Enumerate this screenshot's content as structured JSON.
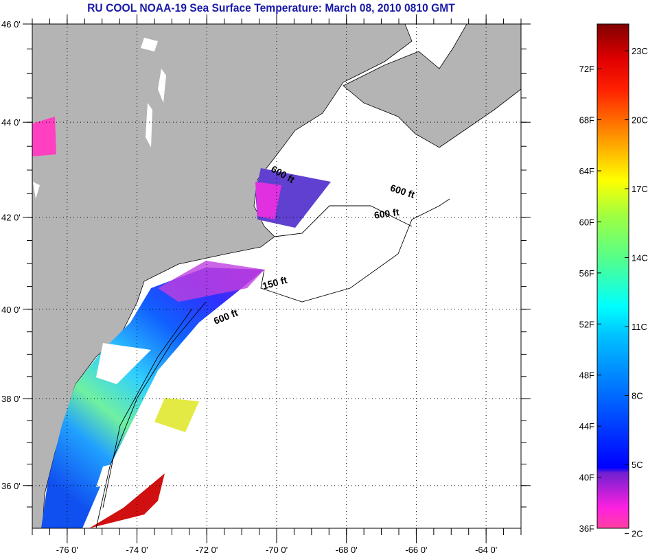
{
  "title": "RU COOL  NOAA-19  Sea Surface Temperature:  March 08, 2010 0810 GMT",
  "map": {
    "lon_range": [
      -77,
      -63
    ],
    "lat_range": [
      35,
      46
    ],
    "lon_labels": [
      {
        "v": -76,
        "t": "-76 0'"
      },
      {
        "v": -74,
        "t": "-74 0'"
      },
      {
        "v": -72,
        "t": "-72 0'"
      },
      {
        "v": -70,
        "t": "-70 0'"
      },
      {
        "v": -68,
        "t": "-68 0'"
      },
      {
        "v": -66,
        "t": "-66 0'"
      },
      {
        "v": -64,
        "t": "-64 0'"
      }
    ],
    "lat_labels": [
      {
        "v": 46,
        "t": "46 0'"
      },
      {
        "v": 44,
        "t": "44 0'"
      },
      {
        "v": 42,
        "t": "42 0'"
      },
      {
        "v": 40,
        "t": "40 0'"
      },
      {
        "v": 38,
        "t": "38 0'"
      },
      {
        "v": 36,
        "t": "36 0'"
      }
    ],
    "contour_labels": [
      "600 ft",
      "600 ft",
      "600 ft",
      "150 ft",
      "600 ft"
    ],
    "colors": {
      "land": "#b4b4b4",
      "ocean": "#ffffff"
    }
  },
  "colorbar": {
    "f_labels": [
      "72F",
      "68F",
      "64F",
      "60F",
      "56F",
      "52F",
      "48F",
      "44F",
      "40F",
      "36F"
    ],
    "f_values": [
      72,
      68,
      64,
      60,
      56,
      52,
      48,
      44,
      40,
      36
    ],
    "c_labels": [
      "23C",
      "20C",
      "17C",
      "14C",
      "11C",
      "8C",
      "5C",
      "2C"
    ],
    "c_values": [
      23,
      20,
      17,
      14,
      11,
      8,
      5,
      2
    ],
    "range_f": [
      36,
      75.5
    ]
  }
}
